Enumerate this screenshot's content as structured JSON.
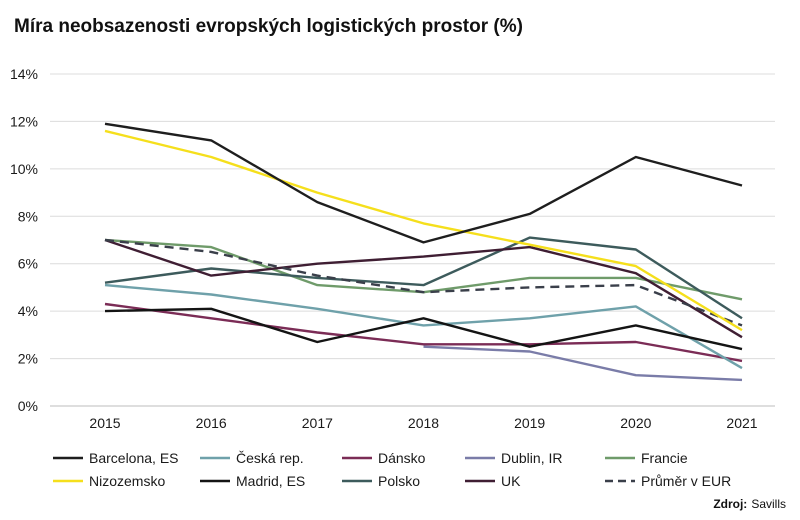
{
  "chart_data": {
    "type": "line",
    "title": "Míra neobsazenosti evropských logistických prostor (%)",
    "x": [
      "2015",
      "2016",
      "2017",
      "2018",
      "2019",
      "2020",
      "2021"
    ],
    "ylim": [
      0,
      14
    ],
    "yticks": [
      0,
      2,
      4,
      6,
      8,
      10,
      12,
      14
    ],
    "ytick_labels": [
      "0%",
      "2%",
      "4%",
      "6%",
      "8%",
      "10%",
      "12%",
      "14%"
    ],
    "grid": "horizontal",
    "legend_placement": "bottom",
    "series": [
      {
        "name": "Barcelona, ES",
        "color": "#1e1e1e",
        "dash": false,
        "values": [
          11.9,
          11.2,
          8.6,
          6.9,
          8.1,
          10.5,
          9.3
        ]
      },
      {
        "name": "Česká rep.",
        "color": "#6fa1aa",
        "dash": false,
        "values": [
          5.1,
          4.7,
          4.1,
          3.4,
          3.7,
          4.2,
          1.6
        ]
      },
      {
        "name": "Dánsko",
        "color": "#7b2c56",
        "dash": false,
        "values": [
          4.3,
          3.7,
          3.1,
          2.6,
          2.6,
          2.7,
          1.9
        ]
      },
      {
        "name": "Dublin, IR",
        "color": "#7a7ca8",
        "dash": false,
        "values": [
          null,
          null,
          null,
          2.5,
          2.3,
          1.3,
          1.1
        ]
      },
      {
        "name": "Francie",
        "color": "#6f9b6a",
        "dash": false,
        "values": [
          7.0,
          6.7,
          5.1,
          4.8,
          5.4,
          5.4,
          4.5
        ]
      },
      {
        "name": "Nizozemsko",
        "color": "#f5df1c",
        "dash": false,
        "values": [
          11.6,
          10.5,
          9.0,
          7.7,
          6.8,
          5.9,
          3.2
        ]
      },
      {
        "name": "Madrid, ES",
        "color": "#141414",
        "dash": false,
        "values": [
          4.0,
          4.1,
          2.7,
          3.7,
          2.5,
          3.4,
          2.4
        ]
      },
      {
        "name": "Polsko",
        "color": "#3d5b5c",
        "dash": false,
        "values": [
          5.2,
          5.8,
          5.4,
          5.1,
          7.1,
          6.6,
          3.7
        ]
      },
      {
        "name": "UK",
        "color": "#3f1e33",
        "dash": false,
        "values": [
          7.0,
          5.5,
          6.0,
          6.3,
          6.7,
          5.6,
          2.9
        ]
      },
      {
        "name": "Průměr v EUR",
        "color": "#3a3f4a",
        "dash": true,
        "values": [
          7.0,
          6.5,
          5.5,
          4.8,
          5.0,
          5.1,
          3.4
        ]
      }
    ]
  },
  "source": {
    "label": "Zdroj:",
    "value": "Savills"
  }
}
